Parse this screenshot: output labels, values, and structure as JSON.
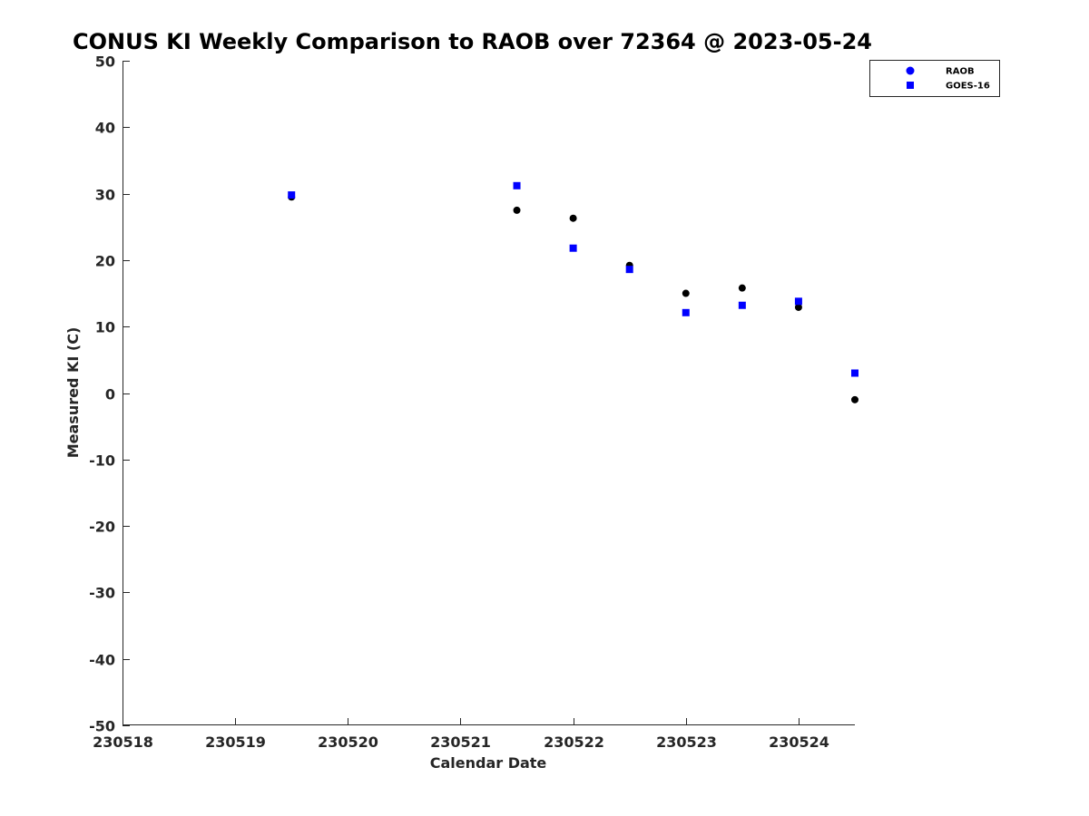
{
  "chart_data": {
    "type": "scatter",
    "title": "CONUS KI Weekly Comparison to RAOB over 72364 @ 2023-05-24",
    "xlabel": "Calendar Date",
    "ylabel": "Measured KI (C)",
    "xlim": [
      230518,
      230524.5
    ],
    "ylim": [
      -50,
      50
    ],
    "xticks": [
      230518,
      230519,
      230520,
      230521,
      230522,
      230523,
      230524
    ],
    "xtick_labels": [
      "230518",
      "230519",
      "230520",
      "230521",
      "230522",
      "230523",
      "230524"
    ],
    "yticks": [
      50,
      40,
      30,
      20,
      10,
      0,
      -10,
      -20,
      -30,
      -40,
      -50
    ],
    "ytick_labels": [
      "50",
      "40",
      "30",
      "20",
      "10",
      "0",
      "-10",
      "-20",
      "-30",
      "-40",
      "-50"
    ],
    "legend": "top-right",
    "series": [
      {
        "name": "RAOB",
        "marker": "circle",
        "color": "#000000",
        "legend_color": "#0000ff",
        "x": [
          230519.5,
          230521.5,
          230522,
          230522.5,
          230523,
          230523.5,
          230524,
          230524.5
        ],
        "y": [
          29.5,
          27.5,
          26.3,
          19.2,
          15.0,
          15.8,
          12.9,
          -1.0
        ]
      },
      {
        "name": "GOES-16",
        "marker": "square",
        "color": "#0000ff",
        "legend_color": "#0000ff",
        "x": [
          230519.5,
          230521.5,
          230522,
          230522.5,
          230523,
          230523.5,
          230524,
          230524.5
        ],
        "y": [
          29.8,
          31.2,
          21.8,
          18.6,
          12.1,
          13.2,
          13.8,
          3.0
        ]
      }
    ]
  }
}
